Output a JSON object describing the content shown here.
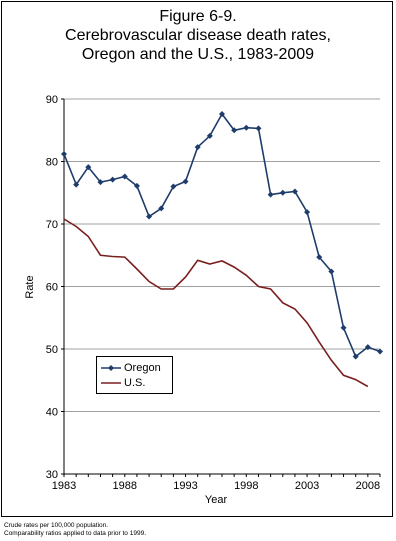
{
  "title": {
    "line1": "Figure 6-9.",
    "line2": "Cerebrovascular disease death rates,",
    "line3": "Oregon and the U.S., 1983-2009"
  },
  "footnotes": {
    "line1": "Crude rates per 100,000 population.",
    "line2": "Comparability ratios applied to data prior to 1999."
  },
  "colors": {
    "oregon": "#1f3d6b",
    "us": "#7a1f1f",
    "grid": "#808080"
  },
  "chart_data": {
    "type": "line",
    "xlabel": "Year",
    "ylabel": "Rate",
    "xlim": [
      1983,
      2009
    ],
    "ylim": [
      30,
      90
    ],
    "yticks": [
      30,
      40,
      50,
      60,
      70,
      80,
      90
    ],
    "xticks": [
      1983,
      1988,
      1993,
      1998,
      2003,
      2008
    ],
    "grid": true,
    "legend_position": "lower-left",
    "x": [
      1983,
      1984,
      1985,
      1986,
      1987,
      1988,
      1989,
      1990,
      1991,
      1992,
      1993,
      1994,
      1995,
      1996,
      1997,
      1998,
      1999,
      2000,
      2001,
      2002,
      2003,
      2004,
      2005,
      2006,
      2007,
      2008,
      2009
    ],
    "series": [
      {
        "name": "Oregon",
        "marker": "diamond",
        "values": [
          81.2,
          76.3,
          79.1,
          76.7,
          77.1,
          77.6,
          76.1,
          71.2,
          72.5,
          76.0,
          76.8,
          82.3,
          84.1,
          87.6,
          85.0,
          85.4,
          85.3,
          74.7,
          75.0,
          75.2,
          71.9,
          64.7,
          62.4,
          53.4,
          48.8,
          50.3,
          49.6
        ]
      },
      {
        "name": "U.S.",
        "marker": "none",
        "values": [
          70.8,
          69.6,
          68.0,
          65.0,
          64.8,
          64.7,
          62.8,
          60.8,
          59.6,
          59.6,
          61.5,
          64.2,
          63.6,
          64.1,
          63.1,
          61.8,
          60.0,
          59.6,
          57.4,
          56.4,
          54.2,
          51.1,
          48.2,
          45.8,
          45.1,
          44.0,
          null
        ]
      }
    ]
  }
}
